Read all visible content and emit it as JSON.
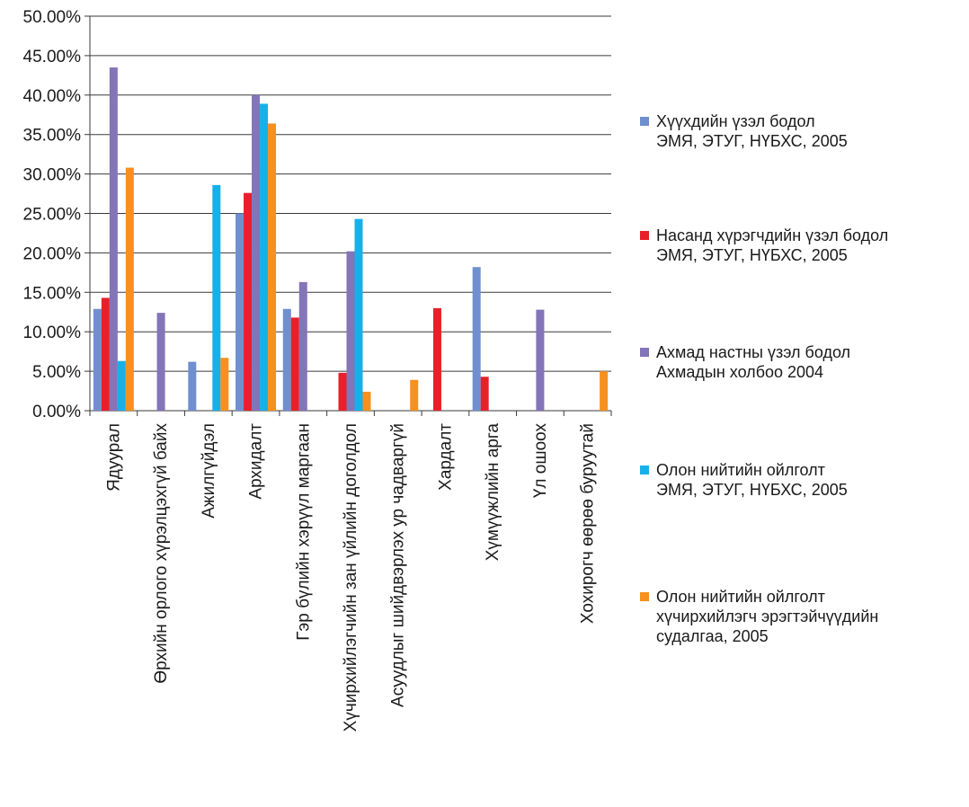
{
  "chart_data": {
    "type": "bar",
    "categories": [
      "Ядуурал",
      "Өрхийн орлого хүрэлцэхгүй байх",
      "Ажилгүйдэл",
      "Архидалт",
      "Гэр бүлийн хэрүүл маргаан",
      "Хүчирхийлэгчийн зан үйлийн доголдол",
      "Асуудлыг шийдвэрлэх ур чадваргүй",
      "Хардалт",
      "Хүмүүжлийн арга",
      "Үл ошоох",
      "Хохирогч өөрөө буруутай"
    ],
    "series": [
      {
        "name_lines": [
          "Хүүхдийн үзэл бодол",
          "ЭМЯ, ЭТУГ, НҮБХС, 2005"
        ],
        "color": "#6f8fcf",
        "values": [
          12.9,
          null,
          6.2,
          25.0,
          12.9,
          null,
          null,
          null,
          18.2,
          null,
          null
        ]
      },
      {
        "name_lines": [
          "Насанд хүрэгчдийн үзэл бодол",
          "ЭМЯ, ЭТУГ, НҮБХС, 2005"
        ],
        "color": "#e8202a",
        "values": [
          14.3,
          null,
          null,
          27.6,
          11.8,
          4.8,
          null,
          13.0,
          4.3,
          null,
          null
        ]
      },
      {
        "name_lines": [
          "Ахмад настны үзэл бодол",
          "Ахмадын холбоо 2004"
        ],
        "color": "#8474b8",
        "values": [
          43.5,
          12.4,
          null,
          40.0,
          16.3,
          20.2,
          null,
          null,
          null,
          12.8,
          null
        ]
      },
      {
        "name_lines": [
          "Олон нийтийн ойлголт",
          "ЭМЯ, ЭТУГ, НҮБХС, 2005"
        ],
        "color": "#17b0ea",
        "values": [
          6.3,
          null,
          28.6,
          38.9,
          null,
          24.3,
          null,
          null,
          null,
          null,
          null
        ]
      },
      {
        "name_lines": [
          "Олон нийтийн ойлголт",
          "хүчирхийлэгч эрэгтэйчүүдийн",
          "судалгаа, 2005"
        ],
        "color": "#f6901e",
        "values": [
          30.8,
          null,
          6.7,
          36.4,
          null,
          2.4,
          3.9,
          null,
          null,
          null,
          5.0
        ]
      }
    ],
    "ylim": [
      0,
      50
    ],
    "yticks": [
      "0.00%",
      "5.00%",
      "10.00%",
      "15.00%",
      "20.00%",
      "25.00%",
      "30.00%",
      "35.00%",
      "40.00%",
      "45.00%",
      "50.00%"
    ],
    "grid": true,
    "legend_position": "right"
  }
}
